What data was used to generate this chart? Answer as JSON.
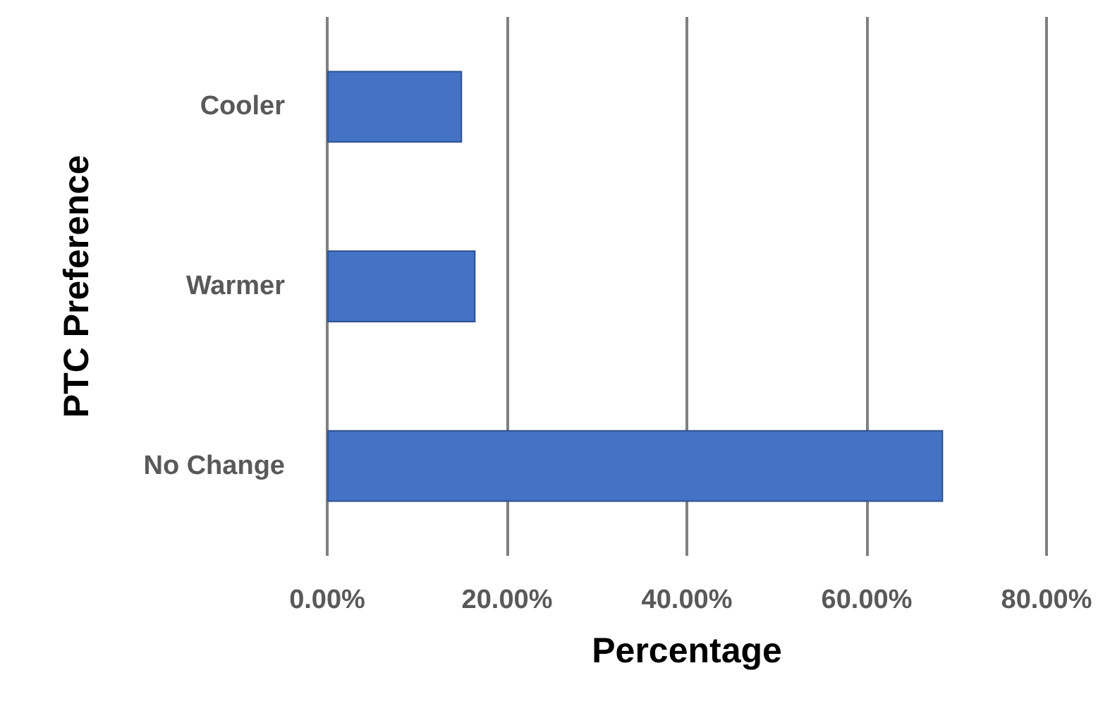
{
  "chart_data": {
    "type": "bar",
    "orientation": "horizontal",
    "xlabel": "Percentage",
    "ylabel": "PTC Preference",
    "categories": [
      "Cooler",
      "Warmer",
      "No Change"
    ],
    "values": [
      15,
      16.5,
      68.5
    ],
    "color": "#4472c4",
    "xlim": [
      0,
      80
    ],
    "xticks": [
      {
        "value": 0,
        "label": "0.00%"
      },
      {
        "value": 20,
        "label": "20.00%"
      },
      {
        "value": 40,
        "label": "40.00%"
      },
      {
        "value": 60,
        "label": "60.00%"
      },
      {
        "value": 80,
        "label": "80.00%"
      }
    ],
    "grid": "x"
  }
}
